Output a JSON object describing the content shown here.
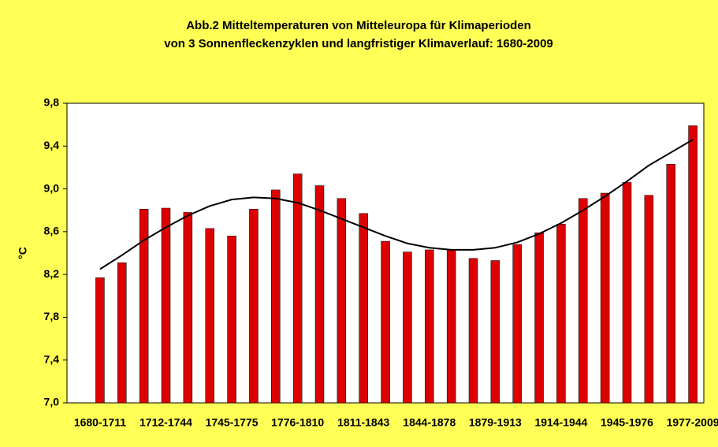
{
  "chart_data": {
    "type": "bar",
    "title": [
      "Abb.2 Mitteltemperaturen von Mitteleuropa für Klimaperioden",
      "von 3 Sonnenfleckenzyklen und langfristiger Klimaverlauf: 1680-2009"
    ],
    "ylabel": "°C",
    "categories": [
      "1680-1711",
      null,
      null,
      "1712-1744",
      null,
      null,
      "1745-1775",
      null,
      null,
      "1776-1810",
      null,
      null,
      "1811-1843",
      null,
      null,
      "1844-1878",
      null,
      null,
      "1879-1913",
      null,
      null,
      "1914-1944",
      null,
      null,
      "1945-1976",
      null,
      null,
      "1977-2009"
    ],
    "values": [
      8.17,
      8.31,
      8.81,
      8.82,
      8.78,
      8.63,
      8.56,
      8.81,
      8.99,
      9.14,
      9.03,
      8.91,
      8.77,
      8.51,
      8.41,
      8.43,
      8.43,
      8.35,
      8.33,
      8.48,
      8.59,
      8.67,
      8.91,
      8.96,
      9.06,
      8.94,
      9.23,
      9.59
    ],
    "color": "#dd0000",
    "trend_values": [
      8.25,
      8.38,
      8.52,
      8.64,
      8.75,
      8.84,
      8.9,
      8.92,
      8.91,
      8.87,
      8.8,
      8.72,
      8.64,
      8.56,
      8.49,
      8.45,
      8.43,
      8.43,
      8.45,
      8.5,
      8.58,
      8.68,
      8.8,
      8.93,
      9.07,
      9.22,
      9.34,
      9.46
    ],
    "trend_color": "#000000",
    "ylim": [
      7.0,
      9.8
    ],
    "yticks": [
      {
        "value": 7.0,
        "label": "7,0"
      },
      {
        "value": 7.4,
        "label": "7,4"
      },
      {
        "value": 7.8,
        "label": "7,8"
      },
      {
        "value": 8.2,
        "label": "8,2"
      },
      {
        "value": 8.6,
        "label": "8,6"
      },
      {
        "value": 9.0,
        "label": "9,0"
      },
      {
        "value": 9.4,
        "label": "9,4"
      },
      {
        "value": 9.8,
        "label": "9,8"
      }
    ],
    "grid": false
  }
}
